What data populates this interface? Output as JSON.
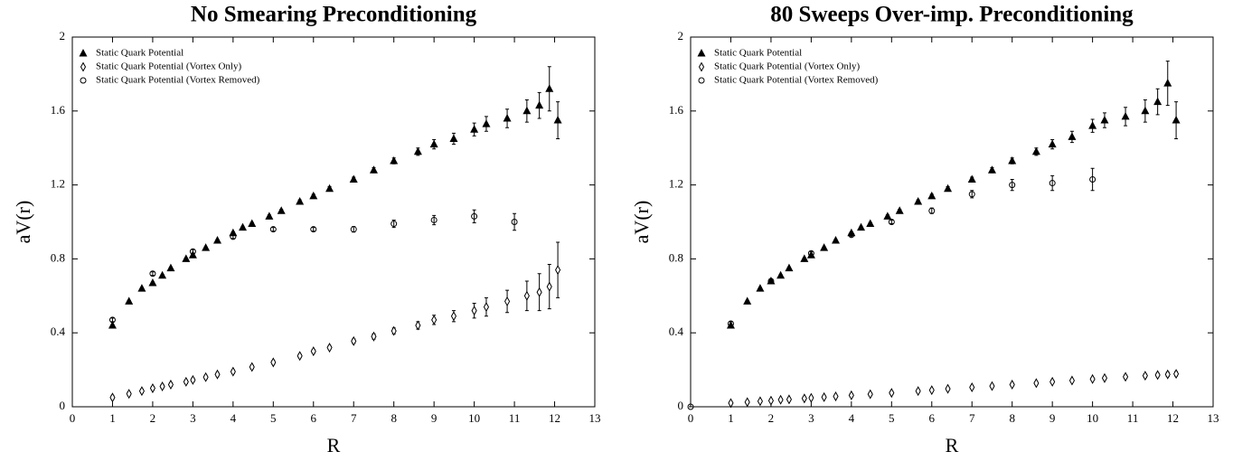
{
  "chart_data": [
    {
      "type": "scatter",
      "title": "No Smearing Preconditioning",
      "xlabel": "R",
      "ylabel": "aV(r)",
      "xlim": [
        0,
        13
      ],
      "xticks": [
        0,
        1,
        2,
        3,
        4,
        5,
        6,
        7,
        8,
        9,
        10,
        11,
        12,
        13
      ],
      "ylim": [
        0,
        2
      ],
      "yticks": [
        0,
        0.4,
        0.8,
        1.2,
        1.6,
        2
      ],
      "legend": "upper left",
      "series": [
        {
          "name": "Static Quark Potential",
          "marker": "triangle",
          "color": "#000000",
          "x": [
            1,
            1.41,
            1.73,
            2,
            2.24,
            2.45,
            2.83,
            3,
            3.32,
            3.61,
            4,
            4.24,
            4.47,
            4.9,
            5.2,
            5.66,
            6,
            6.4,
            7,
            7.5,
            8,
            8.6,
            9,
            9.49,
            10,
            10.3,
            10.82,
            11.31,
            11.62,
            11.87,
            12.08
          ],
          "values": [
            0.44,
            0.57,
            0.64,
            0.67,
            0.71,
            0.75,
            0.8,
            0.82,
            0.86,
            0.9,
            0.94,
            0.97,
            0.99,
            1.03,
            1.06,
            1.11,
            1.14,
            1.18,
            1.23,
            1.28,
            1.33,
            1.38,
            1.42,
            1.45,
            1.5,
            1.53,
            1.56,
            1.6,
            1.63,
            1.72,
            1.55
          ],
          "errors": [
            0.005,
            0.005,
            0.005,
            0.005,
            0.005,
            0.005,
            0.005,
            0.005,
            0.005,
            0.005,
            0.006,
            0.006,
            0.007,
            0.008,
            0.008,
            0.009,
            0.01,
            0.011,
            0.012,
            0.014,
            0.016,
            0.02,
            0.025,
            0.03,
            0.035,
            0.04,
            0.05,
            0.06,
            0.07,
            0.12,
            0.1
          ]
        },
        {
          "name": "Static Quark Potential (Vortex Only)",
          "marker": "diamond",
          "color": "#000000",
          "x": [
            1,
            1.41,
            1.73,
            2,
            2.24,
            2.45,
            2.83,
            3,
            3.32,
            3.61,
            4,
            4.47,
            5,
            5.66,
            6,
            6.4,
            7,
            7.5,
            8,
            8.6,
            9,
            9.49,
            10,
            10.3,
            10.82,
            11.31,
            11.62,
            11.87,
            12.08
          ],
          "values": [
            0.05,
            0.07,
            0.085,
            0.1,
            0.11,
            0.12,
            0.135,
            0.145,
            0.16,
            0.175,
            0.19,
            0.215,
            0.24,
            0.275,
            0.3,
            0.32,
            0.355,
            0.38,
            0.41,
            0.44,
            0.47,
            0.49,
            0.52,
            0.54,
            0.57,
            0.6,
            0.62,
            0.65,
            0.74
          ],
          "errors": [
            0.01,
            0.01,
            0.01,
            0.01,
            0.01,
            0.01,
            0.01,
            0.01,
            0.01,
            0.01,
            0.01,
            0.01,
            0.01,
            0.01,
            0.01,
            0.01,
            0.012,
            0.014,
            0.016,
            0.02,
            0.025,
            0.03,
            0.04,
            0.05,
            0.06,
            0.08,
            0.1,
            0.12,
            0.15
          ]
        },
        {
          "name": "Static Quark Potential (Vortex Removed)",
          "marker": "circle",
          "color": "#000000",
          "x": [
            1,
            2,
            3,
            4,
            5,
            6,
            7,
            8,
            9,
            10,
            11
          ],
          "values": [
            0.47,
            0.72,
            0.84,
            0.92,
            0.96,
            0.96,
            0.96,
            0.99,
            1.01,
            1.03,
            1.0
          ],
          "errors": [
            0.01,
            0.01,
            0.01,
            0.01,
            0.01,
            0.01,
            0.015,
            0.02,
            0.025,
            0.035,
            0.045
          ]
        }
      ]
    },
    {
      "type": "scatter",
      "title": "80 Sweeps Over-imp. Preconditioning",
      "xlabel": "R",
      "ylabel": "aV(r)",
      "xlim": [
        0,
        13
      ],
      "xticks": [
        0,
        1,
        2,
        3,
        4,
        5,
        6,
        7,
        8,
        9,
        10,
        11,
        12,
        13
      ],
      "ylim": [
        0,
        2
      ],
      "yticks": [
        0,
        0.4,
        0.8,
        1.2,
        1.6,
        2
      ],
      "legend": "upper left",
      "series": [
        {
          "name": "Static Quark Potential",
          "marker": "triangle",
          "color": "#000000",
          "x": [
            1,
            1.41,
            1.73,
            2,
            2.24,
            2.45,
            2.83,
            3,
            3.32,
            3.61,
            4,
            4.24,
            4.47,
            4.9,
            5.2,
            5.66,
            6,
            6.4,
            7,
            7.5,
            8,
            8.6,
            9,
            9.49,
            10,
            10.3,
            10.82,
            11.31,
            11.62,
            11.87,
            12.08
          ],
          "values": [
            0.44,
            0.57,
            0.64,
            0.68,
            0.71,
            0.75,
            0.8,
            0.82,
            0.86,
            0.9,
            0.94,
            0.97,
            0.99,
            1.03,
            1.06,
            1.11,
            1.14,
            1.18,
            1.23,
            1.28,
            1.33,
            1.38,
            1.42,
            1.46,
            1.52,
            1.55,
            1.57,
            1.6,
            1.65,
            1.75,
            1.55
          ],
          "errors": [
            0.005,
            0.005,
            0.005,
            0.005,
            0.005,
            0.005,
            0.005,
            0.005,
            0.005,
            0.005,
            0.006,
            0.006,
            0.007,
            0.008,
            0.008,
            0.009,
            0.01,
            0.011,
            0.012,
            0.014,
            0.016,
            0.02,
            0.025,
            0.03,
            0.035,
            0.04,
            0.05,
            0.06,
            0.07,
            0.12,
            0.1
          ]
        },
        {
          "name": "Static Quark Potential (Vortex Only)",
          "marker": "diamond",
          "color": "#000000",
          "x": [
            1,
            1.41,
            1.73,
            2,
            2.24,
            2.45,
            2.83,
            3,
            3.32,
            3.61,
            4,
            4.47,
            5,
            5.66,
            6,
            6.4,
            7,
            7.5,
            8,
            8.6,
            9,
            9.49,
            10,
            10.3,
            10.82,
            11.31,
            11.62,
            11.87,
            12.08
          ],
          "values": [
            0.02,
            0.025,
            0.03,
            0.033,
            0.038,
            0.04,
            0.045,
            0.048,
            0.052,
            0.056,
            0.062,
            0.068,
            0.075,
            0.085,
            0.09,
            0.097,
            0.105,
            0.112,
            0.12,
            0.128,
            0.135,
            0.142,
            0.15,
            0.155,
            0.162,
            0.168,
            0.172,
            0.175,
            0.178
          ],
          "errors": [
            0.008,
            0.008,
            0.008,
            0.008,
            0.008,
            0.008,
            0.008,
            0.008,
            0.008,
            0.008,
            0.008,
            0.008,
            0.008,
            0.008,
            0.008,
            0.008,
            0.008,
            0.008,
            0.008,
            0.008,
            0.008,
            0.008,
            0.008,
            0.008,
            0.01,
            0.01,
            0.01,
            0.012,
            0.012
          ]
        },
        {
          "name": "Static Quark Potential (Vortex Removed)",
          "marker": "circle",
          "color": "#000000",
          "x": [
            0,
            1,
            2,
            3,
            4,
            5,
            6,
            7,
            8,
            9,
            10
          ],
          "values": [
            0,
            0.45,
            0.68,
            0.83,
            0.93,
            1.0,
            1.06,
            1.15,
            1.2,
            1.21,
            1.23
          ],
          "errors": [
            0,
            0.01,
            0.01,
            0.01,
            0.01,
            0.01,
            0.015,
            0.02,
            0.03,
            0.04,
            0.06
          ]
        }
      ]
    }
  ]
}
